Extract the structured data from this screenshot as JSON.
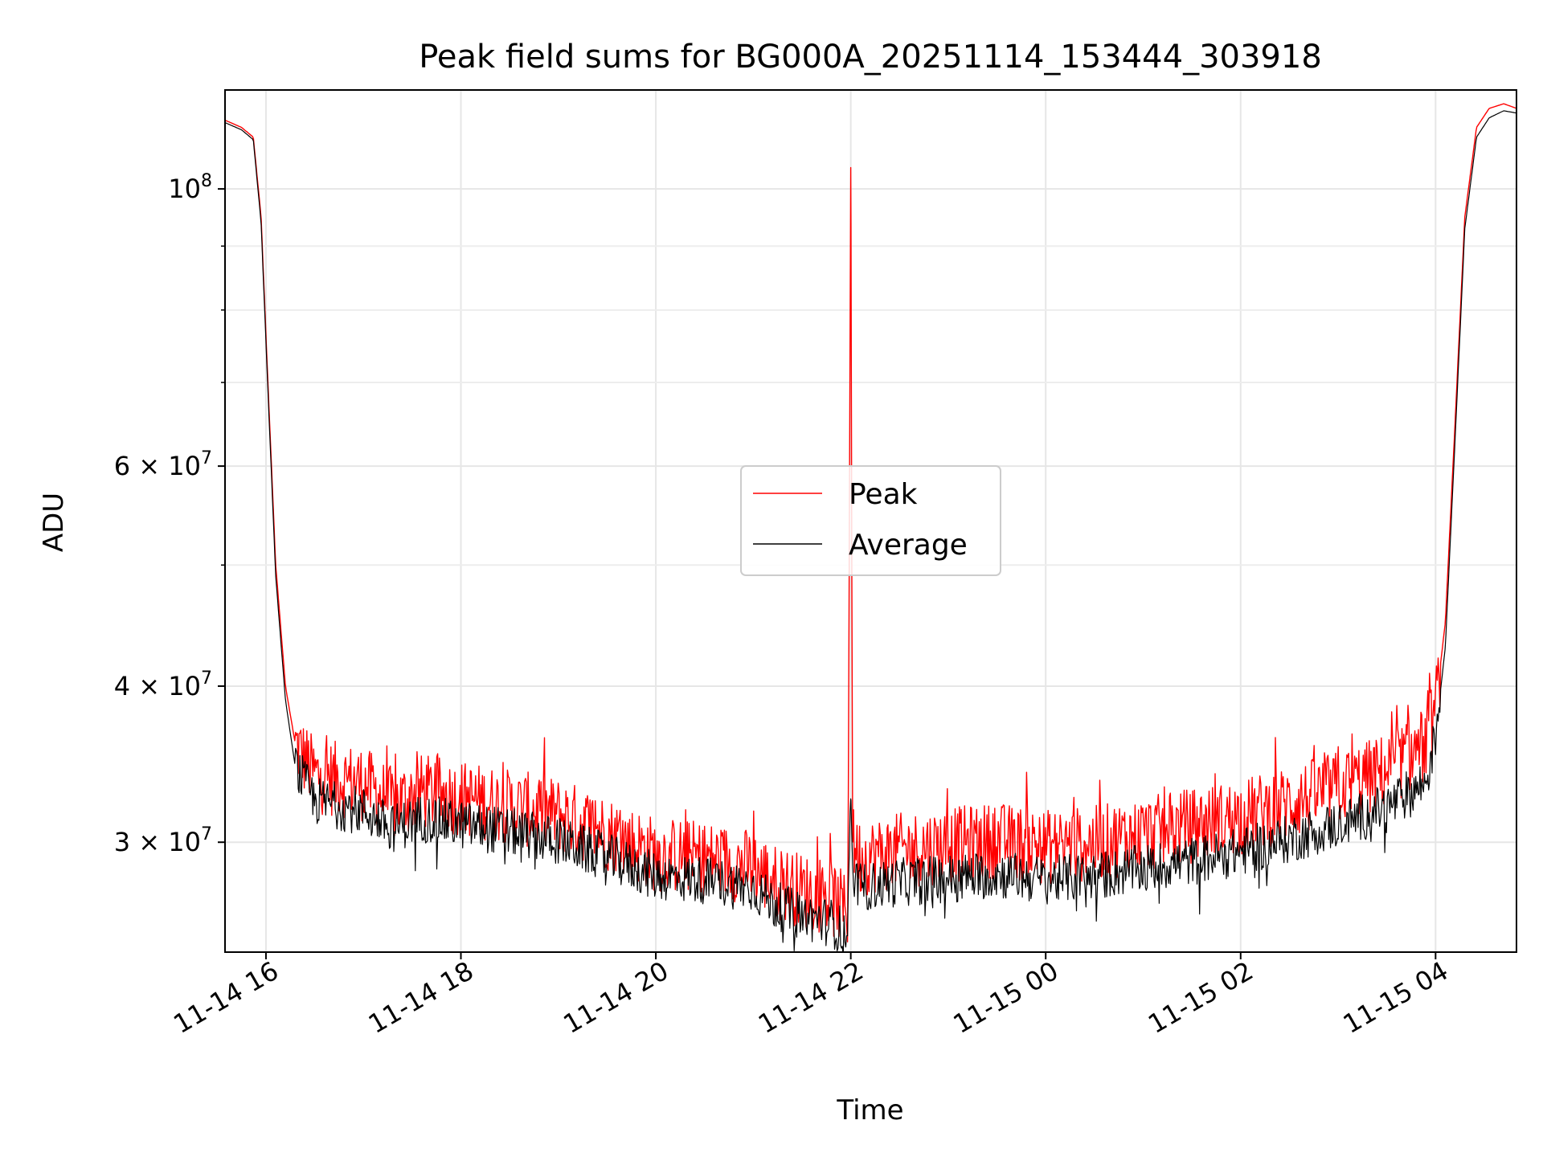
{
  "chart_data": {
    "type": "line",
    "title": "Peak field sums for BG000A_20251114_153444_303918",
    "xlabel": "Time",
    "ylabel": "ADU",
    "y_scale": "log",
    "ylim": [
      24500000,
      120000000
    ],
    "x_range_hours": [
      15.58,
      28.83
    ],
    "grid": true,
    "legend_position": "center",
    "x_ticks": [
      {
        "hour": 16,
        "label": "11-14 16"
      },
      {
        "hour": 18,
        "label": "11-14 18"
      },
      {
        "hour": 20,
        "label": "11-14 20"
      },
      {
        "hour": 22,
        "label": "11-14 22"
      },
      {
        "hour": 24,
        "label": "11-15 00"
      },
      {
        "hour": 26,
        "label": "11-15 02"
      },
      {
        "hour": 28,
        "label": "11-15 04"
      }
    ],
    "y_major_ticks": [
      {
        "value": 100000000,
        "base": "10",
        "exp": "8"
      },
      {
        "value": 60000000,
        "base": "6 × 10",
        "exp": "7"
      },
      {
        "value": 40000000,
        "base": "4 × 10",
        "exp": "7"
      },
      {
        "value": 30000000,
        "base": "3 × 10",
        "exp": "7"
      }
    ],
    "y_minor_ticks": [
      90000000,
      80000000,
      70000000,
      50000000
    ],
    "series": [
      {
        "name": "Peak",
        "color": "#ff0000",
        "points": [
          [
            15.58,
            113500000
          ],
          [
            15.75,
            112000000
          ],
          [
            15.87,
            110000000
          ],
          [
            15.95,
            95000000
          ],
          [
            16.02,
            70000000
          ],
          [
            16.1,
            50000000
          ],
          [
            16.2,
            40000000
          ],
          [
            16.3,
            36000000
          ],
          [
            16.5,
            34000000
          ],
          [
            17.0,
            33500000
          ],
          [
            17.3,
            32200000
          ],
          [
            17.6,
            33000000
          ],
          [
            18.0,
            32600000
          ],
          [
            18.5,
            32100000
          ],
          [
            19.0,
            31600000
          ],
          [
            19.5,
            30600000
          ],
          [
            20.0,
            29400000
          ],
          [
            20.5,
            29200000
          ],
          [
            21.0,
            28700000
          ],
          [
            21.2,
            28000000
          ],
          [
            21.5,
            27500000
          ],
          [
            21.8,
            27100000
          ],
          [
            21.97,
            26400000
          ],
          [
            22.0,
            104000000
          ],
          [
            22.02,
            30000000
          ],
          [
            22.1,
            29200000
          ],
          [
            22.5,
            29600000
          ],
          [
            23.0,
            29900000
          ],
          [
            23.5,
            30200000
          ],
          [
            24.0,
            29800000
          ],
          [
            24.5,
            30000000
          ],
          [
            25.0,
            30500000
          ],
          [
            25.5,
            31000000
          ],
          [
            26.0,
            31500000
          ],
          [
            26.5,
            32300000
          ],
          [
            27.0,
            33200000
          ],
          [
            27.5,
            34300000
          ],
          [
            27.9,
            36000000
          ],
          [
            28.0,
            38500000
          ],
          [
            28.1,
            45000000
          ],
          [
            28.2,
            65000000
          ],
          [
            28.3,
            95000000
          ],
          [
            28.42,
            112000000
          ],
          [
            28.55,
            116000000
          ],
          [
            28.7,
            117000000
          ],
          [
            28.83,
            116000000
          ]
        ]
      },
      {
        "name": "Average",
        "color": "#000000",
        "points": [
          [
            15.58,
            113000000
          ],
          [
            15.75,
            111500000
          ],
          [
            15.87,
            109500000
          ],
          [
            15.95,
            94000000
          ],
          [
            16.02,
            69000000
          ],
          [
            16.1,
            49000000
          ],
          [
            16.2,
            39000000
          ],
          [
            16.3,
            34500000
          ],
          [
            16.5,
            32400000
          ],
          [
            17.0,
            31800000
          ],
          [
            17.3,
            30800000
          ],
          [
            17.6,
            31400000
          ],
          [
            18.0,
            31000000
          ],
          [
            18.5,
            30600000
          ],
          [
            19.0,
            30100000
          ],
          [
            19.5,
            29200000
          ],
          [
            20.0,
            28200000
          ],
          [
            20.5,
            28000000
          ],
          [
            21.0,
            27600000
          ],
          [
            21.2,
            26800000
          ],
          [
            21.5,
            26200000
          ],
          [
            21.8,
            25900000
          ],
          [
            21.97,
            25300000
          ],
          [
            22.0,
            32500000
          ],
          [
            22.02,
            28000000
          ],
          [
            22.1,
            27600000
          ],
          [
            22.5,
            27900000
          ],
          [
            23.0,
            28100000
          ],
          [
            23.5,
            28300000
          ],
          [
            24.0,
            28000000
          ],
          [
            24.5,
            28200000
          ],
          [
            25.0,
            28600000
          ],
          [
            25.5,
            29000000
          ],
          [
            26.0,
            29500000
          ],
          [
            26.5,
            30200000
          ],
          [
            27.0,
            31000000
          ],
          [
            27.5,
            32000000
          ],
          [
            27.9,
            33500000
          ],
          [
            28.0,
            36500000
          ],
          [
            28.1,
            43000000
          ],
          [
            28.2,
            63000000
          ],
          [
            28.3,
            93000000
          ],
          [
            28.42,
            110000000
          ],
          [
            28.55,
            114000000
          ],
          [
            28.7,
            115500000
          ],
          [
            28.83,
            115000000
          ]
        ]
      }
    ]
  }
}
